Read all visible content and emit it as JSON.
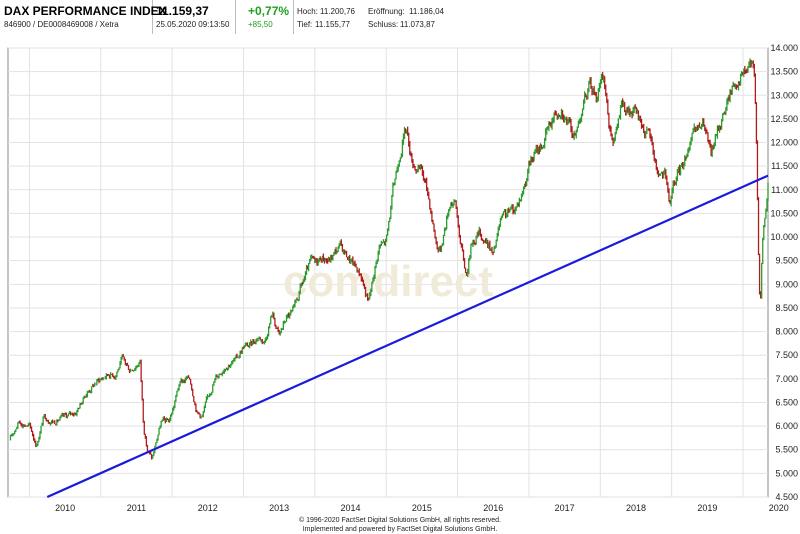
{
  "header": {
    "name": "DAX PERFORMANCE INDEX",
    "ident": "846900 / DE0008469008 / Xetra",
    "price": "11.159,37",
    "datetime": "25.05.2020 09:13:50",
    "change_pct": "+0,77%",
    "change_abs": "+85,50",
    "high_label": "Hoch:",
    "high_value": "11.200,76",
    "open_label": "Eröffnung:",
    "open_value": "11.186,04",
    "low_label": "Tief:",
    "low_value": "11.155,77",
    "close_label": "Schluss:",
    "close_value": "11.073,87"
  },
  "watermark": "comdirect",
  "copyright": {
    "line1": "© 1996-2020 FactSet Digital Solutions GmbH, all rights reserved.",
    "line2": "Implemented and powered by FactSet Digital Solutions GmbH."
  },
  "colors": {
    "up": "#2e9b2e",
    "down": "#b01c1c",
    "trendline": "#1a1adc",
    "positive": "#1fa01f"
  },
  "chart_data": {
    "type": "candlestick",
    "x_ticks": [
      "2010",
      "2011",
      "2012",
      "2013",
      "2014",
      "2015",
      "2016",
      "2017",
      "2018",
      "2019",
      "2020"
    ],
    "y_ticks": [
      "4.500",
      "5.000",
      "5.500",
      "6.000",
      "6.500",
      "7.000",
      "7.500",
      "8.000",
      "8.500",
      "9.000",
      "9.500",
      "10.000",
      "10.500",
      "11.000",
      "11.500",
      "12.000",
      "12.500",
      "13.000",
      "13.500",
      "14.000"
    ],
    "ylim": [
      4500,
      14000
    ],
    "xlim": [
      2009.7,
      2020.35
    ],
    "grid": true,
    "series_close": [
      [
        2009.72,
        5700
      ],
      [
        2009.85,
        6100
      ],
      [
        2010.0,
        6000
      ],
      [
        2010.1,
        5600
      ],
      [
        2010.2,
        6200
      ],
      [
        2010.35,
        6100
      ],
      [
        2010.5,
        6200
      ],
      [
        2010.65,
        6300
      ],
      [
        2010.8,
        6700
      ],
      [
        2010.95,
        6950
      ],
      [
        2011.0,
        7000
      ],
      [
        2011.1,
        7100
      ],
      [
        2011.2,
        7100
      ],
      [
        2011.3,
        7400
      ],
      [
        2011.4,
        7200
      ],
      [
        2011.5,
        7300
      ],
      [
        2011.55,
        7400
      ],
      [
        2011.6,
        6000
      ],
      [
        2011.65,
        5500
      ],
      [
        2011.72,
        5300
      ],
      [
        2011.78,
        5700
      ],
      [
        2011.85,
        6100
      ],
      [
        2011.95,
        6100
      ],
      [
        2012.0,
        6300
      ],
      [
        2012.1,
        6900
      ],
      [
        2012.2,
        7000
      ],
      [
        2012.25,
        7000
      ],
      [
        2012.35,
        6300
      ],
      [
        2012.42,
        6200
      ],
      [
        2012.5,
        6600
      ],
      [
        2012.6,
        7000
      ],
      [
        2012.75,
        7300
      ],
      [
        2012.9,
        7400
      ],
      [
        2013.0,
        7700
      ],
      [
        2013.1,
        7700
      ],
      [
        2013.2,
        7900
      ],
      [
        2013.3,
        7800
      ],
      [
        2013.4,
        8400
      ],
      [
        2013.5,
        7900
      ],
      [
        2013.6,
        8300
      ],
      [
        2013.7,
        8400
      ],
      [
        2013.8,
        8900
      ],
      [
        2013.95,
        9500
      ],
      [
        2014.0,
        9400
      ],
      [
        2014.1,
        9600
      ],
      [
        2014.2,
        9500
      ],
      [
        2014.35,
        9800
      ],
      [
        2014.45,
        9600
      ],
      [
        2014.55,
        9400
      ],
      [
        2014.65,
        9200
      ],
      [
        2014.75,
        8600
      ],
      [
        2014.8,
        9000
      ],
      [
        2014.9,
        9800
      ],
      [
        2015.0,
        9900
      ],
      [
        2015.1,
        11000
      ],
      [
        2015.2,
        11900
      ],
      [
        2015.28,
        12300
      ],
      [
        2015.35,
        11700
      ],
      [
        2015.45,
        11400
      ],
      [
        2015.5,
        11400
      ],
      [
        2015.6,
        10800
      ],
      [
        2015.7,
        9900
      ],
      [
        2015.75,
        9700
      ],
      [
        2015.82,
        10200
      ],
      [
        2015.9,
        10800
      ],
      [
        2015.97,
        10700
      ],
      [
        2016.05,
        9800
      ],
      [
        2016.12,
        9200
      ],
      [
        2016.2,
        9900
      ],
      [
        2016.3,
        10100
      ],
      [
        2016.45,
        9800
      ],
      [
        2016.5,
        9600
      ],
      [
        2016.6,
        10300
      ],
      [
        2016.7,
        10500
      ],
      [
        2016.8,
        10600
      ],
      [
        2016.9,
        10900
      ],
      [
        2017.0,
        11500
      ],
      [
        2017.1,
        11800
      ],
      [
        2017.2,
        12000
      ],
      [
        2017.35,
        12600
      ],
      [
        2017.45,
        12800
      ],
      [
        2017.55,
        12400
      ],
      [
        2017.65,
        12100
      ],
      [
        2017.75,
        12800
      ],
      [
        2017.85,
        13200
      ],
      [
        2017.95,
        13000
      ],
      [
        2018.05,
        13400
      ],
      [
        2018.12,
        12400
      ],
      [
        2018.2,
        12100
      ],
      [
        2018.3,
        12800
      ],
      [
        2018.4,
        12600
      ],
      [
        2018.5,
        12600
      ],
      [
        2018.6,
        12300
      ],
      [
        2018.7,
        12100
      ],
      [
        2018.8,
        11400
      ],
      [
        2018.9,
        11300
      ],
      [
        2018.97,
        10700
      ],
      [
        2019.05,
        11200
      ],
      [
        2019.15,
        11500
      ],
      [
        2019.25,
        12000
      ],
      [
        2019.35,
        12200
      ],
      [
        2019.45,
        12400
      ],
      [
        2019.55,
        11700
      ],
      [
        2019.65,
        12300
      ],
      [
        2019.75,
        12700
      ],
      [
        2019.85,
        13200
      ],
      [
        2019.95,
        13400
      ],
      [
        2020.05,
        13500
      ],
      [
        2020.12,
        13700
      ],
      [
        2020.16,
        13300
      ],
      [
        2020.19,
        11900
      ],
      [
        2020.22,
        9500
      ],
      [
        2020.24,
        8500
      ],
      [
        2020.27,
        9800
      ],
      [
        2020.3,
        10300
      ],
      [
        2020.33,
        10700
      ],
      [
        2020.35,
        11100
      ]
    ],
    "trendline": {
      "from": [
        2010.25,
        4500
      ],
      "to": [
        2020.35,
        11300
      ]
    }
  }
}
